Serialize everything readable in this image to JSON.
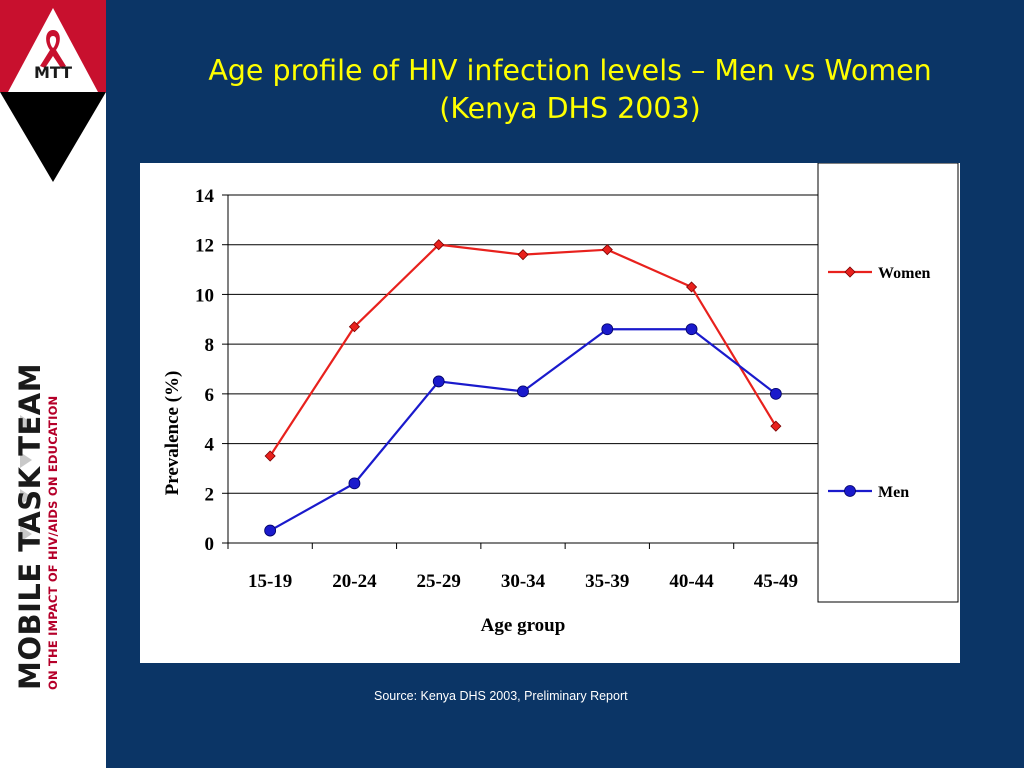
{
  "slide": {
    "title_line1": "Age profile of HIV infection levels – Men vs Women",
    "title_line2": "(Kenya DHS 2003)",
    "source": "Source: Kenya DHS 2003, Preliminary Report",
    "brand_main": "MOBILE TASK TEAM",
    "brand_sub": "ON THE IMPACT OF HIV/AIDS ON EDUCATION",
    "logo_letters": "MTT",
    "colors": {
      "background": "#0b3566",
      "title": "#ffff00",
      "women": "#e8211d",
      "men": "#1a1acc",
      "logo_red": "#c8102e"
    },
    "icons": [
      "red-ribbon-icon",
      "arrow-bullet-icon"
    ]
  },
  "chart_data": {
    "type": "line",
    "categories": [
      "15-19",
      "20-24",
      "25-29",
      "30-34",
      "35-39",
      "40-44",
      "45-49"
    ],
    "series": [
      {
        "name": "Women",
        "values": [
          3.5,
          8.7,
          12.0,
          11.6,
          11.8,
          10.3,
          4.7
        ],
        "color": "#e8211d",
        "marker": "diamond"
      },
      {
        "name": "Men",
        "values": [
          0.5,
          2.4,
          6.5,
          6.1,
          8.6,
          8.6,
          6.0
        ],
        "color": "#1a1acc",
        "marker": "circle"
      }
    ],
    "title": "",
    "xlabel": "Age group",
    "ylabel": "Prevalence (%)",
    "ylim": [
      0,
      14
    ],
    "yticks": [
      0,
      2,
      4,
      6,
      8,
      10,
      12,
      14
    ],
    "grid": true,
    "legend": "right"
  }
}
